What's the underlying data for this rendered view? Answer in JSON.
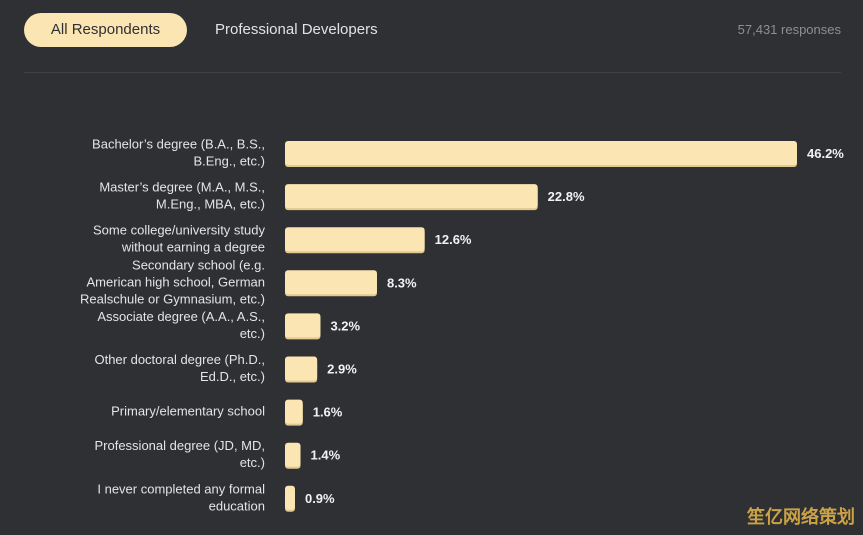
{
  "tabs": [
    {
      "label": "All Respondents",
      "active": true
    },
    {
      "label": "Professional Developers",
      "active": false
    }
  ],
  "responses_label": "57,431 responses",
  "watermark": "笙亿网络策划",
  "colors": {
    "background": "#2e3033",
    "bar": "#fbe5b2",
    "bar_shadow": "#e3c98f",
    "tab_active": "#fbe5b2"
  },
  "chart_data": {
    "type": "bar",
    "orientation": "horizontal",
    "categories": [
      [
        "Bachelor’s degree (B.A., B.S.,",
        "B.Eng., etc.)"
      ],
      [
        "Master’s degree (M.A., M.S.,",
        "M.Eng., MBA, etc.)"
      ],
      [
        "Some college/university study",
        "without earning a degree"
      ],
      [
        "Secondary school (e.g.",
        "American high school, German",
        "Realschule or Gymnasium, etc.)"
      ],
      [
        "Associate degree (A.A., A.S.,",
        "etc.)"
      ],
      [
        "Other doctoral degree (Ph.D.,",
        "Ed.D., etc.)"
      ],
      [
        "Primary/elementary school"
      ],
      [
        "Professional degree (JD, MD,",
        "etc.)"
      ],
      [
        "I never completed any formal",
        "education"
      ]
    ],
    "values": [
      46.2,
      22.8,
      12.6,
      8.3,
      3.2,
      2.9,
      1.6,
      1.4,
      0.9
    ],
    "value_labels": [
      "46.2%",
      "22.8%",
      "12.6%",
      "8.3%",
      "3.2%",
      "2.9%",
      "1.6%",
      "1.4%",
      "0.9%"
    ],
    "xlim": [
      0,
      46.2
    ],
    "grid": false,
    "legend": "none"
  }
}
